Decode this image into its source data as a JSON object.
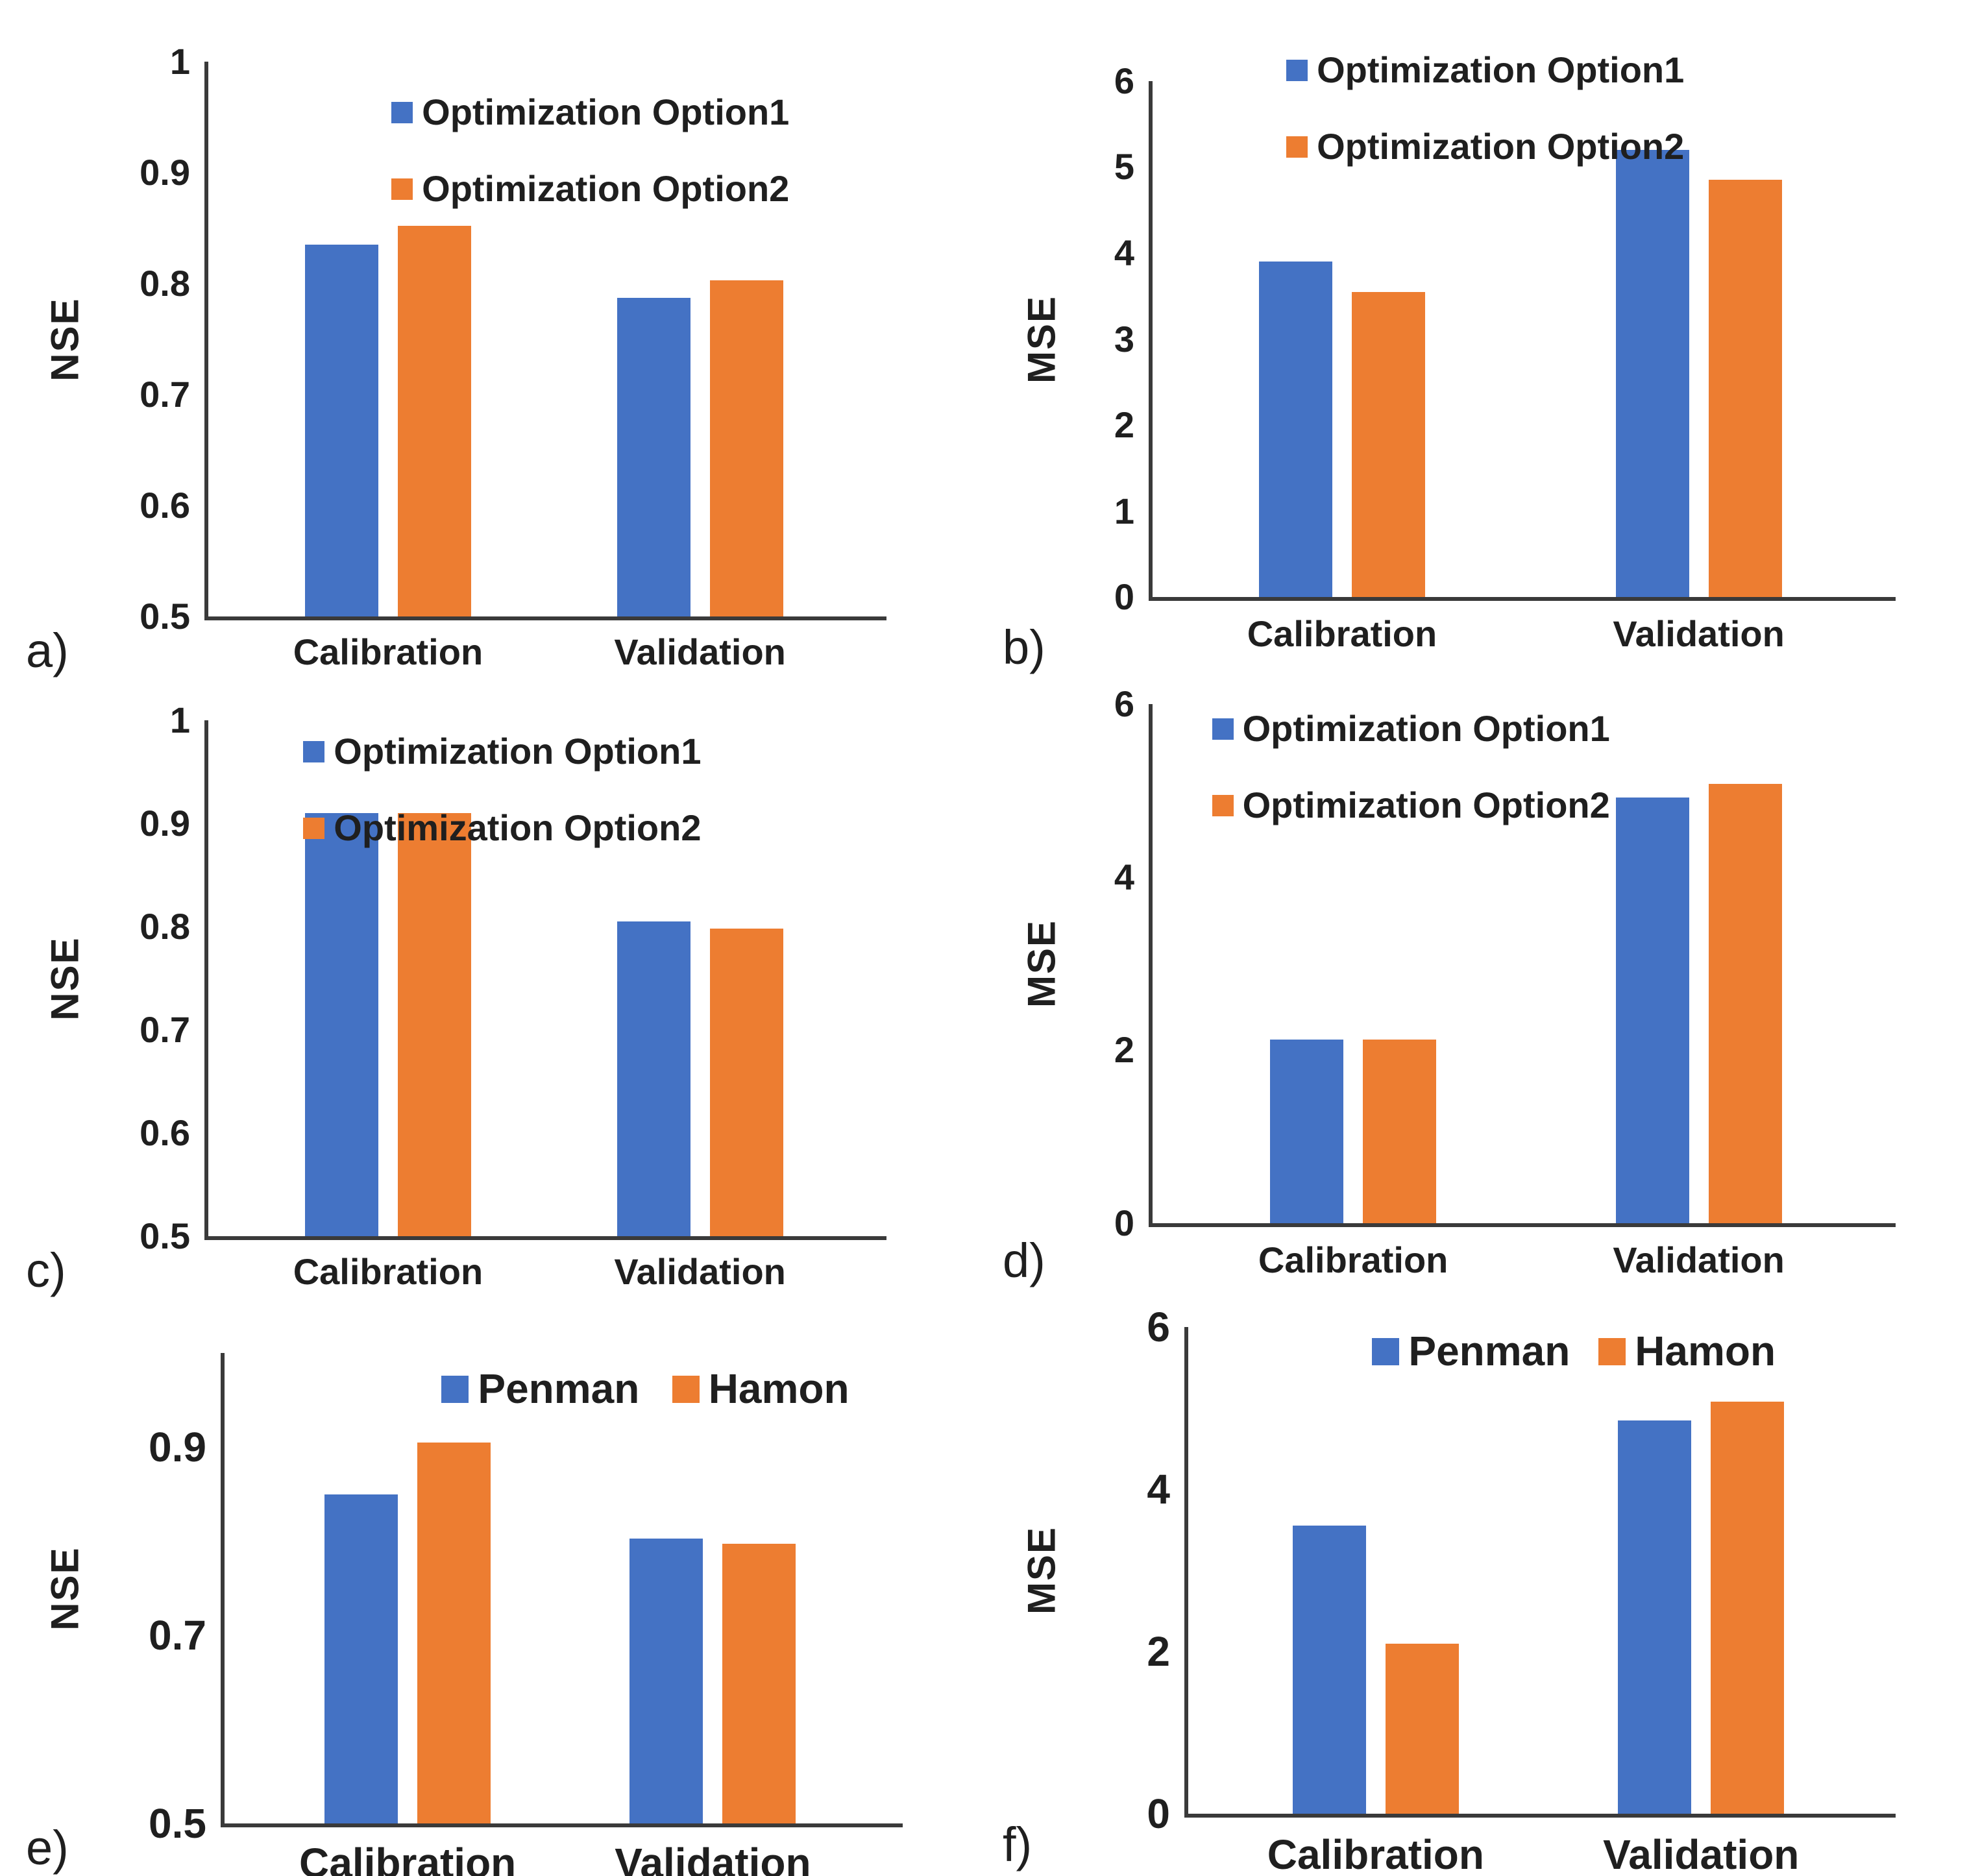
{
  "colors": {
    "series1": "#4472C4",
    "series2": "#ED7D31",
    "axis": "#3a3a3a",
    "text": "#1f1f1f"
  },
  "chart_data": [
    {
      "id": "a",
      "panel_label": "a)",
      "type": "bar",
      "title": "",
      "xlabel": "",
      "ylabel": "NSE",
      "categories": [
        "Calibration",
        "Validation"
      ],
      "series": [
        {
          "name": "Optimization Option1",
          "color_key": "series1",
          "values": [
            0.835,
            0.787
          ]
        },
        {
          "name": "Optimization Option2",
          "color_key": "series2",
          "values": [
            0.852,
            0.803
          ]
        }
      ],
      "ylim": [
        0.5,
        1.0
      ],
      "yticks": [
        {
          "label": "1",
          "value": 1.0
        },
        {
          "label": "0.9",
          "value": 0.9
        },
        {
          "label": "0.8",
          "value": 0.8
        },
        {
          "label": "0.7",
          "value": 0.7
        },
        {
          "label": "0.6",
          "value": 0.6
        },
        {
          "label": "0.5",
          "value": 0.5
        }
      ],
      "grid": false,
      "legend_position": "top-inside-vertical"
    },
    {
      "id": "b",
      "panel_label": "b)",
      "type": "bar",
      "title": "",
      "xlabel": "",
      "ylabel": "MSE",
      "categories": [
        "Calibration",
        "Validation"
      ],
      "series": [
        {
          "name": "Optimization Option1",
          "color_key": "series1",
          "values": [
            3.9,
            5.2
          ]
        },
        {
          "name": "Optimization Option2",
          "color_key": "series2",
          "values": [
            3.55,
            4.85
          ]
        }
      ],
      "ylim": [
        0,
        6
      ],
      "yticks": [
        {
          "label": "6",
          "value": 6
        },
        {
          "label": "5",
          "value": 5
        },
        {
          "label": "4",
          "value": 4
        },
        {
          "label": "3",
          "value": 3
        },
        {
          "label": "2",
          "value": 2
        },
        {
          "label": "1",
          "value": 1
        },
        {
          "label": "0",
          "value": 0
        }
      ],
      "grid": false,
      "legend_position": "top-inside-vertical"
    },
    {
      "id": "c",
      "panel_label": "c)",
      "type": "bar",
      "title": "",
      "xlabel": "",
      "ylabel": "NSE",
      "categories": [
        "Calibration",
        "Validation"
      ],
      "series": [
        {
          "name": "Optimization Option1",
          "color_key": "series1",
          "values": [
            0.91,
            0.805
          ]
        },
        {
          "name": "Optimization Option2",
          "color_key": "series2",
          "values": [
            0.91,
            0.798
          ]
        }
      ],
      "ylim": [
        0.5,
        1.0
      ],
      "yticks": [
        {
          "label": "1",
          "value": 1.0
        },
        {
          "label": "0.9",
          "value": 0.9
        },
        {
          "label": "0.8",
          "value": 0.8
        },
        {
          "label": "0.7",
          "value": 0.7
        },
        {
          "label": "0.6",
          "value": 0.6
        },
        {
          "label": "0.5",
          "value": 0.5
        }
      ],
      "grid": false,
      "legend_position": "top-inside-vertical"
    },
    {
      "id": "d",
      "panel_label": "d)",
      "type": "bar",
      "title": "",
      "xlabel": "",
      "ylabel": "MSE",
      "categories": [
        "Calibration",
        "Validation"
      ],
      "series": [
        {
          "name": "Optimization Option1",
          "color_key": "series1",
          "values": [
            2.12,
            4.92
          ]
        },
        {
          "name": "Optimization Option2",
          "color_key": "series2",
          "values": [
            2.12,
            5.08
          ]
        }
      ],
      "ylim": [
        0,
        6
      ],
      "yticks": [
        {
          "label": "6",
          "value": 6
        },
        {
          "label": "4",
          "value": 4
        },
        {
          "label": "2",
          "value": 2
        },
        {
          "label": "0",
          "value": 0
        }
      ],
      "grid": false,
      "legend_position": "top-inside-vertical"
    },
    {
      "id": "e",
      "panel_label": "e)",
      "type": "bar",
      "title": "",
      "xlabel": "",
      "ylabel": "NSE",
      "categories": [
        "Calibration",
        "Validation"
      ],
      "series": [
        {
          "name": "Penman",
          "color_key": "series1",
          "values": [
            0.85,
            0.803
          ]
        },
        {
          "name": "Hamon",
          "color_key": "series2",
          "values": [
            0.905,
            0.797
          ]
        }
      ],
      "ylim": [
        0.5,
        1.0
      ],
      "yticks": [
        {
          "label": "0.9",
          "value": 0.9
        },
        {
          "label": "0.7",
          "value": 0.7
        },
        {
          "label": "0.5",
          "value": 0.5
        }
      ],
      "grid": false,
      "legend_position": "top-inside-horizontal"
    },
    {
      "id": "f",
      "panel_label": "f)",
      "type": "bar",
      "title": "",
      "xlabel": "",
      "ylabel": "MSE",
      "categories": [
        "Calibration",
        "Validation"
      ],
      "series": [
        {
          "name": "Penman",
          "color_key": "series1",
          "values": [
            3.55,
            4.85
          ]
        },
        {
          "name": "Hamon",
          "color_key": "series2",
          "values": [
            2.1,
            5.08
          ]
        }
      ],
      "ylim": [
        0,
        6
      ],
      "yticks": [
        {
          "label": "6",
          "value": 6
        },
        {
          "label": "4",
          "value": 4
        },
        {
          "label": "2",
          "value": 2
        },
        {
          "label": "0",
          "value": 0
        }
      ],
      "grid": false,
      "legend_position": "top-inside-horizontal"
    }
  ]
}
